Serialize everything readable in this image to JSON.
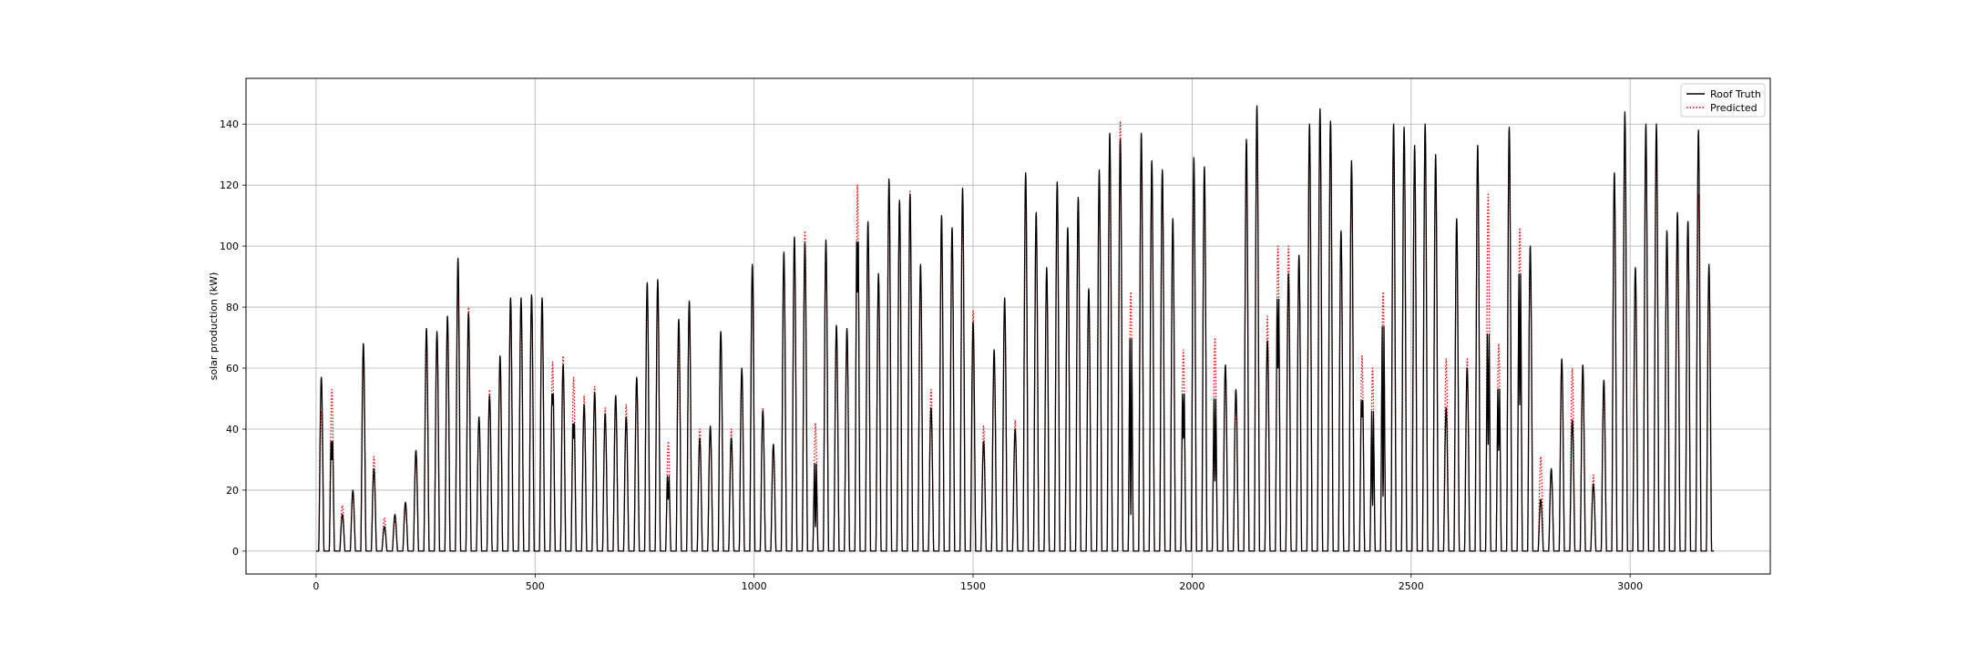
{
  "chart_data": {
    "type": "line",
    "title": "",
    "xlabel": "",
    "ylabel": "solar production (kW)",
    "xlim": [
      -160,
      3320
    ],
    "ylim": [
      -7.5,
      155
    ],
    "xticks": [
      0,
      500,
      1000,
      1500,
      2000,
      2500,
      3000
    ],
    "yticks": [
      0,
      20,
      40,
      60,
      80,
      100,
      120,
      140
    ],
    "grid": true,
    "legend_position": "top-right",
    "hours_per_day": 24,
    "series": [
      {
        "name": "Roof Truth",
        "color": "#000000",
        "style": "solid",
        "daily_peaks": [
          57,
          44,
          12,
          20,
          68,
          27,
          8,
          12,
          16,
          33,
          73,
          72,
          77,
          96,
          78,
          44,
          51,
          64,
          83,
          83,
          84,
          83,
          60,
          61,
          50,
          48,
          52,
          45,
          51,
          44,
          57,
          88,
          89,
          30,
          76,
          82,
          37,
          41,
          72,
          37,
          60,
          94,
          46,
          35,
          98,
          103,
          101,
          35,
          102,
          74,
          73,
          124,
          108,
          91,
          122,
          115,
          117,
          94,
          47,
          110,
          106,
          119,
          75,
          36,
          66,
          83,
          40,
          124,
          111,
          93,
          121,
          106,
          116,
          86,
          125,
          137,
          135,
          85,
          137,
          128,
          125,
          109,
          63,
          129,
          126,
          61,
          61,
          53,
          135,
          146,
          69,
          101,
          91,
          97,
          140,
          145,
          141,
          105,
          128,
          59,
          56,
          90,
          140,
          139,
          133,
          140,
          130,
          47,
          109,
          60,
          133,
          87,
          65,
          139,
          111,
          100,
          17,
          27,
          63,
          43,
          61,
          22,
          56,
          124,
          144,
          93,
          140,
          140,
          105,
          111,
          108,
          138,
          94
        ],
        "daily_valleys": [
          null,
          30,
          null,
          null,
          null,
          null,
          null,
          null,
          null,
          null,
          null,
          null,
          null,
          null,
          null,
          null,
          null,
          null,
          null,
          null,
          null,
          null,
          48,
          null,
          37,
          null,
          null,
          null,
          null,
          null,
          null,
          null,
          null,
          17,
          null,
          null,
          null,
          null,
          null,
          null,
          null,
          null,
          null,
          null,
          null,
          null,
          null,
          8,
          null,
          null,
          null,
          85,
          null,
          null,
          null,
          null,
          null,
          null,
          null,
          null,
          null,
          null,
          null,
          null,
          null,
          null,
          null,
          null,
          null,
          null,
          null,
          null,
          null,
          null,
          null,
          null,
          null,
          12,
          null,
          null,
          null,
          null,
          37,
          null,
          null,
          23,
          null,
          null,
          null,
          null,
          null,
          60,
          null,
          null,
          null,
          null,
          null,
          null,
          null,
          44,
          15,
          18,
          null,
          null,
          null,
          null,
          null,
          null,
          null,
          null,
          null,
          35,
          33,
          null,
          48,
          null,
          null,
          null,
          null,
          null,
          null,
          null,
          null,
          null,
          null,
          null,
          null,
          null,
          null,
          null,
          null,
          null,
          null
        ]
      },
      {
        "name": "Predicted",
        "color": "#ff0000",
        "style": "dotted",
        "daily_peaks": [
          46,
          53,
          15,
          18,
          62,
          31,
          11,
          10,
          14,
          30,
          68,
          70,
          75,
          86,
          80,
          43,
          53,
          60,
          80,
          80,
          82,
          80,
          62,
          64,
          57,
          51,
          54,
          47,
          48,
          48,
          55,
          85,
          87,
          36,
          71,
          80,
          40,
          38,
          70,
          40,
          58,
          92,
          47,
          33,
          96,
          100,
          105,
          42,
          100,
          72,
          70,
          120,
          104,
          90,
          120,
          114,
          118,
          90,
          53,
          105,
          104,
          114,
          79,
          41,
          62,
          80,
          43,
          118,
          107,
          90,
          120,
          103,
          115,
          84,
          120,
          133,
          141,
          85,
          133,
          125,
          124,
          104,
          66,
          123,
          124,
          70,
          60,
          50,
          132,
          142,
          77,
          100,
          100,
          96,
          138,
          143,
          140,
          103,
          124,
          64,
          60,
          85,
          136,
          137,
          130,
          136,
          125,
          63,
          105,
          63,
          131,
          117,
          68,
          136,
          106,
          96,
          31,
          25,
          62,
          60,
          55,
          25,
          52,
          121,
          130,
          90,
          136,
          135,
          100,
          104,
          108,
          117,
          90
        ]
      }
    ]
  }
}
